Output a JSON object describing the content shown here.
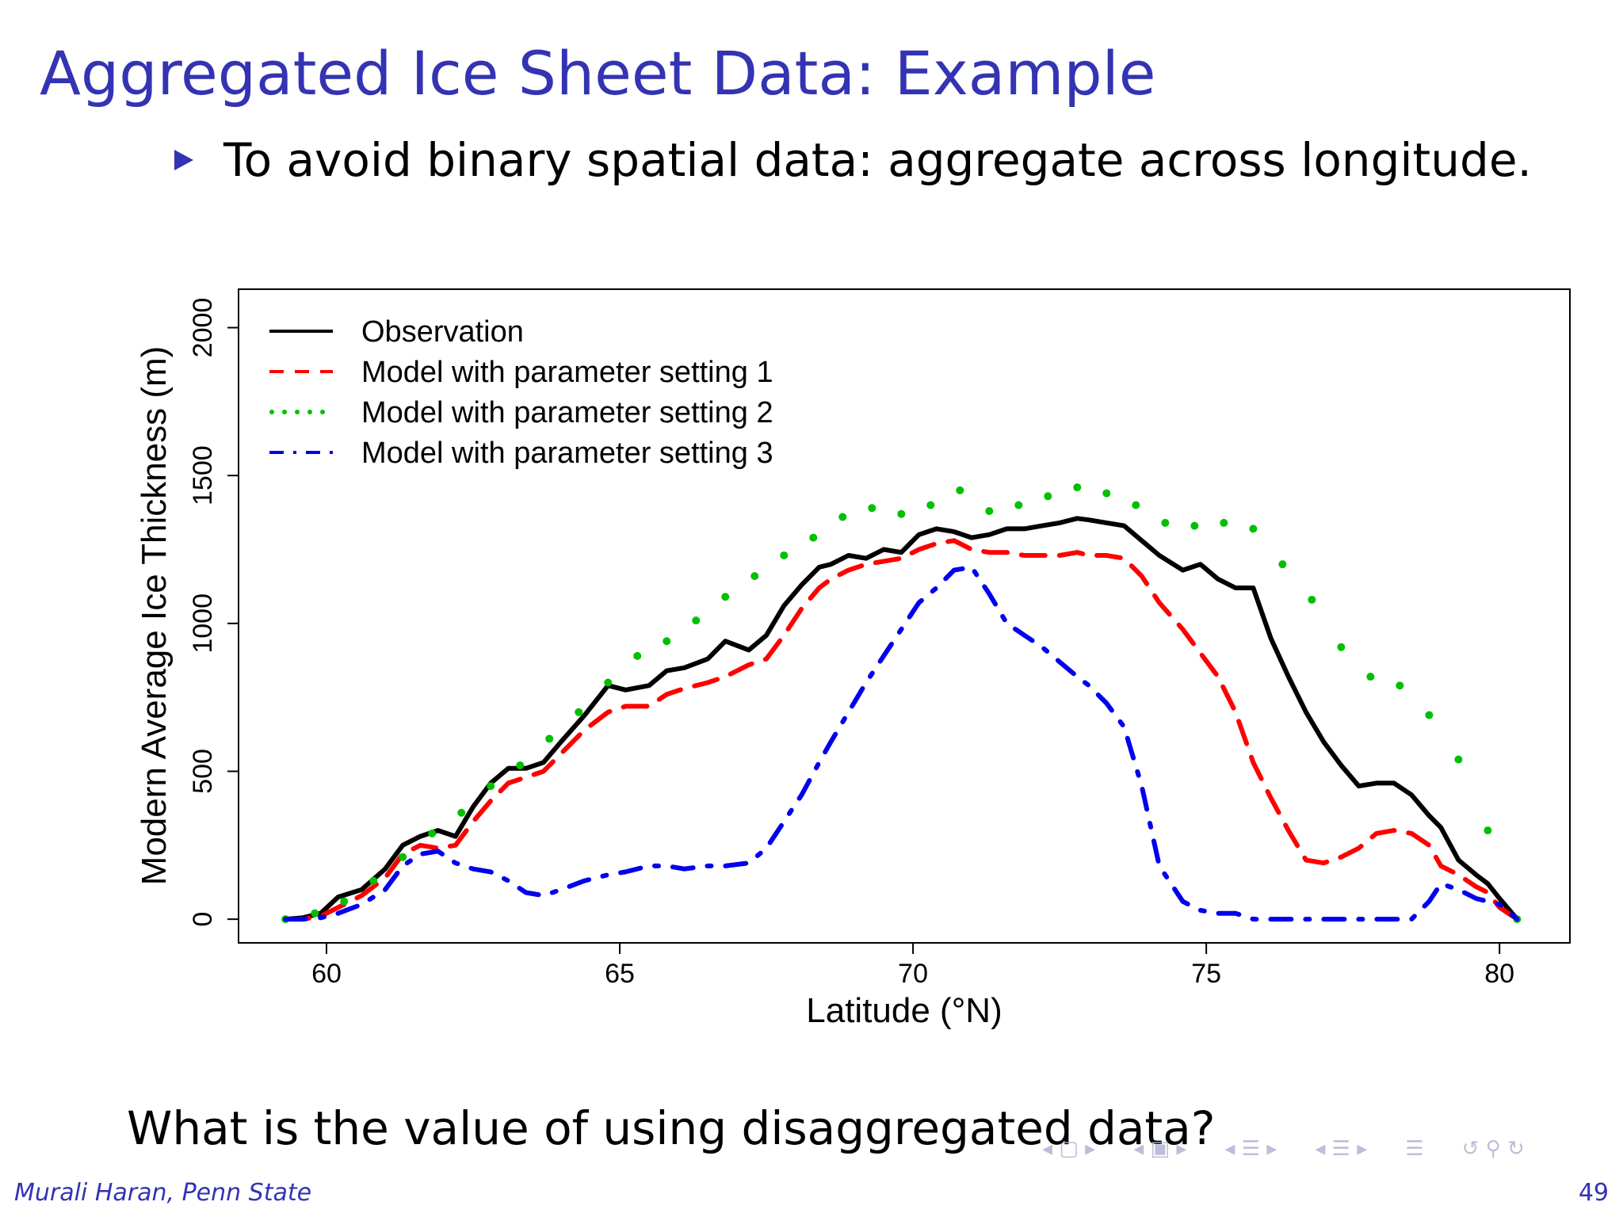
{
  "slide": {
    "title": "Aggregated Ice Sheet Data: Example",
    "bullet": "To avoid binary spatial data: aggregate across longitude.",
    "question": "What is the value of using disaggregated data?",
    "footer_author": "Murali Haran, Penn State",
    "page_number": "49",
    "accent_color": "#3333b3"
  },
  "navigation": {
    "icons": [
      "nav-frame-icon",
      "nav-subsection-icon",
      "nav-section-icon",
      "nav-document-icon",
      "nav-align-icon",
      "nav-search-icon"
    ]
  },
  "chart_data": {
    "type": "line",
    "title": "",
    "xlabel": "Latitude (°N)",
    "ylabel": "Modern Average Ice Thickness (m)",
    "xlim": [
      58.5,
      81.2
    ],
    "ylim": [
      -80,
      2130
    ],
    "xticks": [
      60,
      65,
      70,
      75,
      80
    ],
    "yticks": [
      0,
      500,
      1000,
      1500,
      2000
    ],
    "grid": false,
    "legend_position": "top-left",
    "series": [
      {
        "name": "Observation",
        "color": "#000000",
        "style": "solid",
        "x": [
          59.3,
          59.6,
          59.9,
          60.2,
          60.6,
          61.0,
          61.3,
          61.6,
          61.9,
          62.2,
          62.5,
          62.8,
          63.1,
          63.4,
          63.7,
          64.0,
          64.4,
          64.8,
          65.1,
          65.5,
          65.8,
          66.1,
          66.5,
          66.8,
          67.2,
          67.5,
          67.8,
          68.1,
          68.4,
          68.6,
          68.9,
          69.2,
          69.5,
          69.8,
          70.1,
          70.4,
          70.7,
          71.0,
          71.3,
          71.6,
          71.9,
          72.2,
          72.5,
          72.8,
          73.0,
          73.3,
          73.6,
          73.9,
          74.2,
          74.6,
          74.9,
          75.2,
          75.5,
          75.8,
          76.1,
          76.4,
          76.7,
          77.0,
          77.3,
          77.6,
          77.9,
          78.2,
          78.5,
          78.8,
          79.0,
          79.3,
          79.6,
          79.8,
          80.0,
          80.3
        ],
        "y": [
          0,
          5,
          20,
          75,
          100,
          170,
          250,
          280,
          300,
          280,
          380,
          460,
          510,
          510,
          530,
          600,
          690,
          790,
          775,
          790,
          840,
          850,
          880,
          940,
          910,
          960,
          1060,
          1130,
          1190,
          1200,
          1230,
          1220,
          1250,
          1240,
          1300,
          1320,
          1310,
          1290,
          1300,
          1320,
          1320,
          1330,
          1340,
          1355,
          1350,
          1340,
          1330,
          1280,
          1230,
          1180,
          1200,
          1150,
          1120,
          1120,
          950,
          820,
          700,
          600,
          520,
          450,
          460,
          460,
          420,
          350,
          310,
          200,
          150,
          120,
          70,
          0
        ]
      },
      {
        "name": "Model with parameter setting 1",
        "color": "#ff0000",
        "style": "dashed",
        "x": [
          59.3,
          59.6,
          59.9,
          60.2,
          60.6,
          61.0,
          61.3,
          61.6,
          61.9,
          62.2,
          62.5,
          62.8,
          63.1,
          63.4,
          63.7,
          64.0,
          64.4,
          64.8,
          65.1,
          65.5,
          65.8,
          66.1,
          66.5,
          66.8,
          67.2,
          67.5,
          67.8,
          68.1,
          68.4,
          68.6,
          68.9,
          69.2,
          69.5,
          69.8,
          70.1,
          70.4,
          70.7,
          71.0,
          71.3,
          71.6,
          71.9,
          72.2,
          72.5,
          72.8,
          73.0,
          73.3,
          73.6,
          73.9,
          74.2,
          74.6,
          74.9,
          75.2,
          75.5,
          75.8,
          76.1,
          76.4,
          76.7,
          77.0,
          77.3,
          77.6,
          77.9,
          78.2,
          78.5,
          78.8,
          79.0,
          79.3,
          79.6,
          79.8,
          80.0,
          80.3
        ],
        "y": [
          0,
          0,
          10,
          40,
          80,
          140,
          220,
          250,
          240,
          250,
          330,
          400,
          460,
          480,
          500,
          560,
          640,
          700,
          720,
          720,
          760,
          780,
          800,
          820,
          860,
          880,
          960,
          1050,
          1120,
          1150,
          1180,
          1200,
          1210,
          1220,
          1250,
          1270,
          1280,
          1250,
          1240,
          1240,
          1230,
          1230,
          1230,
          1240,
          1230,
          1230,
          1220,
          1160,
          1070,
          980,
          900,
          820,
          700,
          530,
          410,
          300,
          200,
          190,
          210,
          240,
          290,
          300,
          290,
          250,
          180,
          150,
          110,
          90,
          40,
          0
        ]
      },
      {
        "name": "Model with parameter setting 2",
        "color": "#00c000",
        "style": "dotted",
        "x": [
          59.3,
          59.8,
          60.3,
          60.8,
          61.3,
          61.8,
          62.3,
          62.8,
          63.3,
          63.8,
          64.3,
          64.8,
          65.3,
          65.8,
          66.3,
          66.8,
          67.3,
          67.8,
          68.3,
          68.8,
          69.3,
          69.8,
          70.3,
          70.8,
          71.3,
          71.8,
          72.3,
          72.8,
          73.3,
          73.8,
          74.3,
          74.8,
          75.3,
          75.8,
          76.3,
          76.8,
          77.3,
          77.8,
          78.3,
          78.8,
          79.3,
          79.8,
          80.3
        ],
        "y": [
          0,
          20,
          60,
          130,
          210,
          290,
          360,
          450,
          520,
          610,
          700,
          800,
          890,
          940,
          1010,
          1090,
          1160,
          1230,
          1290,
          1360,
          1390,
          1370,
          1400,
          1450,
          1380,
          1400,
          1430,
          1460,
          1440,
          1400,
          1340,
          1330,
          1340,
          1320,
          1200,
          1080,
          920,
          820,
          790,
          690,
          540,
          300,
          0
        ]
      },
      {
        "name": "Model with parameter setting 3",
        "color": "#0000ee",
        "style": "dotdash",
        "x": [
          59.3,
          59.6,
          59.9,
          60.2,
          60.6,
          61.0,
          61.3,
          61.6,
          61.9,
          62.2,
          62.5,
          62.8,
          63.1,
          63.4,
          63.7,
          64.0,
          64.4,
          64.8,
          65.1,
          65.5,
          65.8,
          66.1,
          66.5,
          66.8,
          67.2,
          67.5,
          67.8,
          68.1,
          68.4,
          68.6,
          68.9,
          69.2,
          69.5,
          69.8,
          70.1,
          70.4,
          70.7,
          71.0,
          71.3,
          71.6,
          71.9,
          72.2,
          72.5,
          72.8,
          73.0,
          73.3,
          73.6,
          73.9,
          74.2,
          74.6,
          74.9,
          75.2,
          75.5,
          75.8,
          76.1,
          76.4,
          76.7,
          77.0,
          77.3,
          77.6,
          77.9,
          78.2,
          78.5,
          78.8,
          79.0,
          79.3,
          79.6,
          79.8,
          80.0,
          80.3
        ],
        "y": [
          0,
          0,
          5,
          20,
          50,
          100,
          180,
          220,
          230,
          190,
          170,
          160,
          130,
          90,
          80,
          100,
          130,
          150,
          160,
          180,
          180,
          170,
          180,
          180,
          190,
          240,
          330,
          420,
          530,
          600,
          700,
          800,
          890,
          980,
          1070,
          1120,
          1180,
          1190,
          1100,
          1000,
          960,
          920,
          870,
          820,
          790,
          730,
          650,
          450,
          180,
          60,
          30,
          20,
          20,
          0,
          0,
          0,
          0,
          0,
          0,
          0,
          0,
          0,
          0,
          60,
          120,
          100,
          70,
          60,
          50,
          0
        ]
      }
    ]
  }
}
